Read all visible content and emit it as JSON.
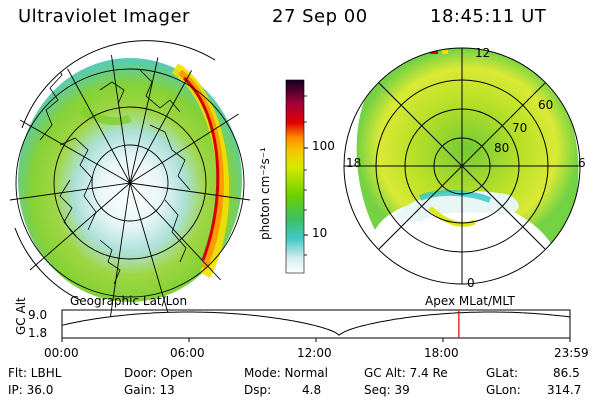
{
  "header": {
    "title": "Ultraviolet Imager",
    "date": "27 Sep 00",
    "time": "18:45:11 UT"
  },
  "colorbar": {
    "label": "photon cm⁻²s⁻¹",
    "ticks": [
      "100",
      "10"
    ]
  },
  "left_panel": {
    "caption": "Geographic Lat/Lon"
  },
  "right_panel": {
    "caption": "Apex MLat/MLT",
    "mlt_labels": [
      "12",
      "18",
      "6",
      "0"
    ],
    "lat_labels": [
      "60",
      "70",
      "80"
    ]
  },
  "timeline": {
    "ylabel": "GC Alt",
    "y_values": [
      "9.0",
      "1.8"
    ],
    "time_ticks": [
      "00:00",
      "06:00",
      "12:00",
      "18:00",
      "23:59"
    ],
    "current_time_hours": 18.75
  },
  "info": {
    "flt": "Flt: LBHL",
    "ip": "IP: 36.0",
    "door": "Door: Open",
    "gain": "Gain: 13",
    "mode": "Mode: Normal",
    "dsp_label": "Dsp:",
    "dsp_value": "4.8",
    "gcalt": "GC Alt: 7.4 Re",
    "seq": "Seq: 39",
    "glat_label": "GLat:",
    "glat_value": "86.5",
    "glon_label": "GLon:",
    "glon_value": "314.7"
  },
  "colors": {
    "aurora_green": "#8fd400",
    "aurora_yellow": "#f2e000",
    "aurora_orange": "#ff9a00",
    "aurora_red": "#d40000",
    "low_cyan": "#2ec6c6",
    "marker_red": "#d40000"
  }
}
